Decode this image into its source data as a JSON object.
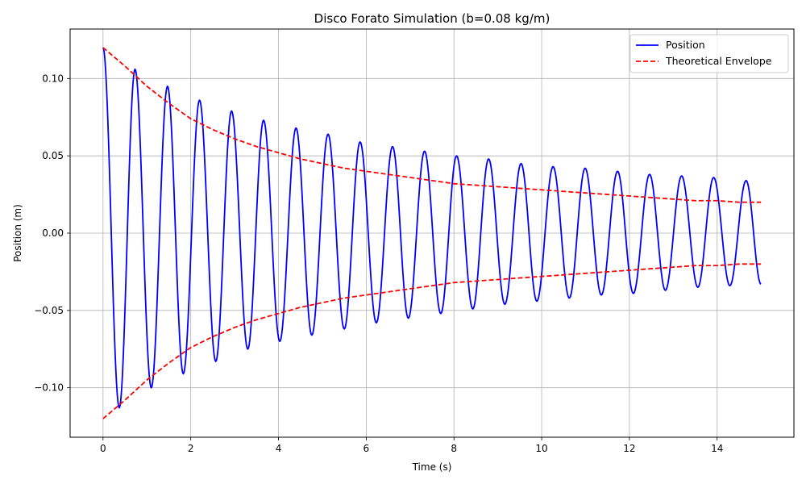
{
  "chart_data": {
    "type": "line",
    "title": "Disco Forato Simulation (b=0.08 kg/m)",
    "xlabel": "Time (s)",
    "ylabel": "Position (m)",
    "xlim": [
      -0.75,
      15.75
    ],
    "ylim": [
      -0.132,
      0.132
    ],
    "xticks": [
      0,
      2,
      4,
      6,
      8,
      10,
      12,
      14
    ],
    "xtick_labels": [
      "0",
      "2",
      "4",
      "6",
      "8",
      "10",
      "12",
      "14"
    ],
    "yticks": [
      -0.1,
      -0.05,
      0.0,
      0.05,
      0.1
    ],
    "ytick_labels": [
      "−0.10",
      "−0.05",
      "0.00",
      "0.05",
      "0.10"
    ],
    "grid": true,
    "legend_position": "top-right",
    "time_range": [
      0,
      15
    ],
    "series": [
      {
        "name": "Position",
        "color": "#0000ff",
        "style": "solid",
        "points": [
          [
            0.0,
            0.12
          ],
          [
            0.37,
            -0.113
          ],
          [
            0.73,
            0.106
          ],
          [
            1.1,
            -0.1
          ],
          [
            1.47,
            0.095
          ],
          [
            1.83,
            -0.091
          ],
          [
            2.2,
            0.086
          ],
          [
            2.57,
            -0.083
          ],
          [
            2.93,
            0.079
          ],
          [
            3.3,
            -0.075
          ],
          [
            3.66,
            0.073
          ],
          [
            4.03,
            -0.07
          ],
          [
            4.4,
            0.068
          ],
          [
            4.76,
            -0.066
          ],
          [
            5.13,
            0.064
          ],
          [
            5.5,
            -0.062
          ],
          [
            5.86,
            0.059
          ],
          [
            6.23,
            -0.058
          ],
          [
            6.6,
            0.056
          ],
          [
            6.96,
            -0.055
          ],
          [
            7.33,
            0.053
          ],
          [
            7.7,
            -0.052
          ],
          [
            8.06,
            0.05
          ],
          [
            8.43,
            -0.049
          ],
          [
            8.79,
            0.048
          ],
          [
            9.16,
            -0.046
          ],
          [
            9.53,
            0.045
          ],
          [
            9.89,
            -0.044
          ],
          [
            10.26,
            0.043
          ],
          [
            10.63,
            -0.042
          ],
          [
            10.99,
            0.042
          ],
          [
            11.36,
            -0.04
          ],
          [
            11.73,
            0.04
          ],
          [
            12.09,
            -0.039
          ],
          [
            12.46,
            0.038
          ],
          [
            12.82,
            -0.037
          ],
          [
            13.19,
            0.037
          ],
          [
            13.56,
            -0.035
          ],
          [
            13.92,
            0.036
          ],
          [
            14.29,
            -0.034
          ],
          [
            14.66,
            0.034
          ],
          [
            15.0,
            -0.033
          ]
        ]
      },
      {
        "name": "Theoretical Envelope",
        "color": "#ff0000",
        "style": "dashed",
        "points": [
          [
            0,
            0.12
          ],
          [
            0.5,
            0.108
          ],
          [
            1,
            0.095
          ],
          [
            1.5,
            0.084
          ],
          [
            2,
            0.074
          ],
          [
            2.5,
            0.067
          ],
          [
            3,
            0.061
          ],
          [
            3.5,
            0.056
          ],
          [
            4,
            0.052
          ],
          [
            4.5,
            0.048
          ],
          [
            5,
            0.045
          ],
          [
            5.5,
            0.042
          ],
          [
            6,
            0.04
          ],
          [
            6.5,
            0.038
          ],
          [
            7,
            0.036
          ],
          [
            7.5,
            0.034
          ],
          [
            8,
            0.032
          ],
          [
            8.5,
            0.031
          ],
          [
            9,
            0.03
          ],
          [
            9.5,
            0.029
          ],
          [
            10,
            0.028
          ],
          [
            10.5,
            0.027
          ],
          [
            11,
            0.026
          ],
          [
            11.5,
            0.025
          ],
          [
            12,
            0.024
          ],
          [
            12.5,
            0.023
          ],
          [
            13,
            0.022
          ],
          [
            13.5,
            0.021
          ],
          [
            14,
            0.021
          ],
          [
            14.5,
            0.02
          ],
          [
            15,
            0.02
          ]
        ],
        "mirrored": true
      }
    ]
  }
}
